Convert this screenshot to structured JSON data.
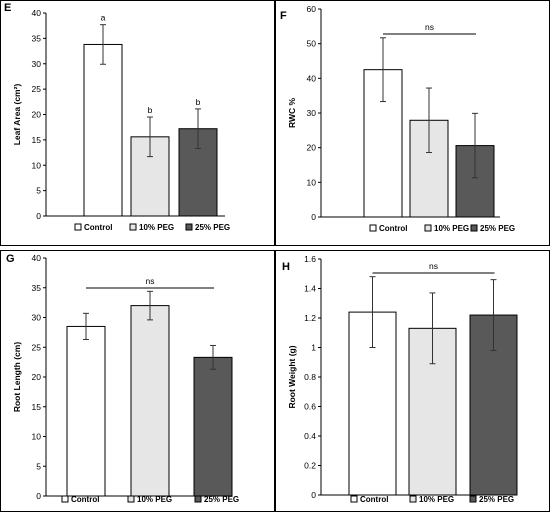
{
  "chart_data": [
    {
      "panel_label": "E",
      "type": "bar",
      "categories": [
        "Control",
        "10% PEG",
        "25% PEG"
      ],
      "values": [
        33.8,
        15.6,
        17.2
      ],
      "errors": [
        3.9,
        3.9,
        3.9
      ],
      "sig_letters": [
        "a",
        "b",
        "b"
      ],
      "ns_label": "",
      "colors": [
        "#ffffff",
        "#e6e6e6",
        "#595959"
      ],
      "title": "",
      "xlabel": "",
      "ylabel": "Leaf Area (cm²)",
      "ylim": [
        0,
        40
      ],
      "yticks": [
        0,
        5,
        10,
        15,
        20,
        25,
        30,
        35,
        40
      ],
      "ytick_labels": [
        "0",
        "5",
        "10",
        "15",
        "20",
        "25",
        "30",
        "35",
        "40"
      ],
      "legend": [
        "Control",
        "10% PEG",
        "25% PEG"
      ],
      "grid": false,
      "legend_position": "bottom"
    },
    {
      "panel_label": "F",
      "type": "bar",
      "categories": [
        "Control",
        "10% PEG",
        "25% PEG"
      ],
      "values": [
        42.5,
        27.9,
        20.6
      ],
      "errors": [
        9.2,
        9.3,
        9.3
      ],
      "sig_letters": [
        "",
        "",
        ""
      ],
      "ns_label": "ns",
      "colors": [
        "#ffffff",
        "#e6e6e6",
        "#595959"
      ],
      "title": "",
      "xlabel": "",
      "ylabel": "RWC %",
      "ylim": [
        0,
        60
      ],
      "yticks": [
        0,
        10,
        20,
        30,
        40,
        50,
        60
      ],
      "ytick_labels": [
        "0",
        "10",
        "20",
        "30",
        "40",
        "50",
        "60"
      ],
      "legend": [
        "Control",
        "10% PEG",
        "25% PEG"
      ],
      "grid": false,
      "legend_position": "bottom"
    },
    {
      "panel_label": "G",
      "type": "bar",
      "categories": [
        "Control",
        "10% PEG",
        "25% PEG"
      ],
      "values": [
        28.5,
        32.0,
        23.3
      ],
      "errors": [
        2.2,
        2.4,
        2.0
      ],
      "sig_letters": [
        "",
        "",
        ""
      ],
      "ns_label": "ns",
      "colors": [
        "#ffffff",
        "#e6e6e6",
        "#595959"
      ],
      "title": "",
      "xlabel": "",
      "ylabel": "Root Length (cm)",
      "ylim": [
        0,
        40
      ],
      "yticks": [
        0,
        5,
        10,
        15,
        20,
        25,
        30,
        35,
        40
      ],
      "ytick_labels": [
        "0",
        "5",
        "10",
        "15",
        "20",
        "25",
        "30",
        "35",
        "40"
      ],
      "legend": [
        "Control",
        "10% PEG",
        "25% PEG"
      ],
      "grid": false,
      "legend_position": "bottom"
    },
    {
      "panel_label": "H",
      "type": "bar",
      "categories": [
        "Control",
        "10% PEG",
        "25% PEG"
      ],
      "values": [
        1.24,
        1.13,
        1.22
      ],
      "errors": [
        0.24,
        0.24,
        0.24
      ],
      "sig_letters": [
        "",
        "",
        ""
      ],
      "ns_label": "ns",
      "colors": [
        "#ffffff",
        "#e6e6e6",
        "#595959"
      ],
      "title": "",
      "xlabel": "",
      "ylabel": "Root Weight (g)",
      "ylim": [
        0,
        1.6
      ],
      "yticks": [
        0,
        0.2,
        0.4,
        0.6,
        0.8,
        1.0,
        1.2,
        1.4,
        1.6
      ],
      "ytick_labels": [
        "0",
        "0.2",
        "0.4",
        "0.6",
        "0.8",
        "1",
        "1.2",
        "1.4",
        "1.6"
      ],
      "legend": [
        "Control",
        "10% PEG",
        "25% PEG"
      ],
      "grid": false,
      "legend_position": "bottom"
    }
  ]
}
